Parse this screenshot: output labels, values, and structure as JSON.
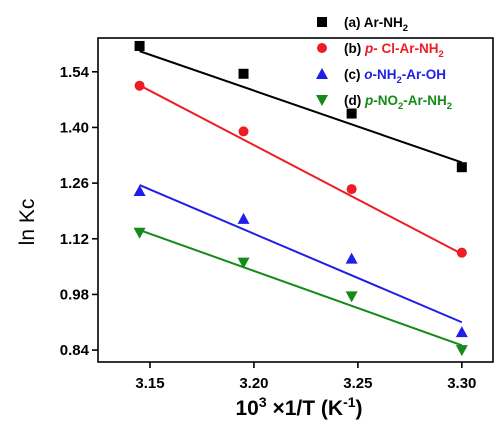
{
  "chart_data": {
    "type": "scatter",
    "xlabel": {
      "base": "10",
      "exp": "3",
      "mid": " ×1/T (K",
      "exp2": "-1",
      "tail": ")"
    },
    "ylabel": "ln Kc",
    "xlim": [
      3.125,
      3.315
    ],
    "ylim": [
      0.81,
      1.625
    ],
    "xticks": [
      {
        "value": 3.15,
        "label": "3.15"
      },
      {
        "value": 3.2,
        "label": "3.20"
      },
      {
        "value": 3.25,
        "label": "3.25"
      },
      {
        "value": 3.3,
        "label": "3.30"
      }
    ],
    "yticks": [
      {
        "value": 0.84,
        "label": "0.84"
      },
      {
        "value": 0.98,
        "label": "0.98"
      },
      {
        "value": 1.12,
        "label": "1.12"
      },
      {
        "value": 1.26,
        "label": "1.26"
      },
      {
        "value": 1.4,
        "label": "1.40"
      },
      {
        "value": 1.54,
        "label": "1.54"
      }
    ],
    "grid": false,
    "legend_position": "top-right",
    "series": [
      {
        "id": "a",
        "color": "#000000",
        "marker": "square",
        "legend": [
          {
            "t": "(a) ",
            "c": "#000000"
          },
          {
            "t": "Ar-NH",
            "c": "#000000"
          },
          {
            "t": "2",
            "c": "#000000",
            "sub": true
          }
        ],
        "x": [
          3.145,
          3.195,
          3.247,
          3.3
        ],
        "y": [
          1.605,
          1.535,
          1.435,
          1.3
        ],
        "fit": [
          [
            3.145,
            1.592
          ],
          [
            3.3,
            1.312
          ]
        ]
      },
      {
        "id": "b",
        "color": "#ee1c24",
        "marker": "circle",
        "legend": [
          {
            "t": "(b) ",
            "c": "#000000"
          },
          {
            "t": "p",
            "c": "#ee1c24",
            "italic": true
          },
          {
            "t": "- Cl-Ar-NH",
            "c": "#ee1c24"
          },
          {
            "t": "2",
            "c": "#ee1c24",
            "sub": true
          }
        ],
        "x": [
          3.145,
          3.195,
          3.247,
          3.3
        ],
        "y": [
          1.505,
          1.39,
          1.245,
          1.085
        ],
        "fit": [
          [
            3.145,
            1.506
          ],
          [
            3.3,
            1.082
          ]
        ]
      },
      {
        "id": "c",
        "color": "#1f1fe8",
        "marker": "triangle-up",
        "legend": [
          {
            "t": "(c) ",
            "c": "#000000"
          },
          {
            "t": "o",
            "c": "#1f1fe8",
            "italic": true
          },
          {
            "t": "-NH",
            "c": "#1f1fe8"
          },
          {
            "t": "2",
            "c": "#1f1fe8",
            "sub": true
          },
          {
            "t": "-Ar-OH",
            "c": "#1f1fe8"
          }
        ],
        "x": [
          3.145,
          3.195,
          3.247,
          3.3
        ],
        "y": [
          1.24,
          1.17,
          1.07,
          0.885
        ],
        "fit": [
          [
            3.145,
            1.255
          ],
          [
            3.3,
            0.91
          ]
        ]
      },
      {
        "id": "d",
        "color": "#158a17",
        "marker": "triangle-down",
        "legend": [
          {
            "t": "(d) ",
            "c": "#000000"
          },
          {
            "t": "p",
            "c": "#158a17",
            "italic": true
          },
          {
            "t": "-NO",
            "c": "#158a17"
          },
          {
            "t": "2",
            "c": "#158a17",
            "sub": true
          },
          {
            "t": "-Ar-NH",
            "c": "#158a17"
          },
          {
            "t": "2",
            "c": "#158a17",
            "sub": true
          }
        ],
        "x": [
          3.145,
          3.195,
          3.247,
          3.3
        ],
        "y": [
          1.135,
          1.06,
          0.975,
          0.84
        ],
        "fit": [
          [
            3.145,
            1.142
          ],
          [
            3.3,
            0.852
          ]
        ]
      }
    ]
  }
}
